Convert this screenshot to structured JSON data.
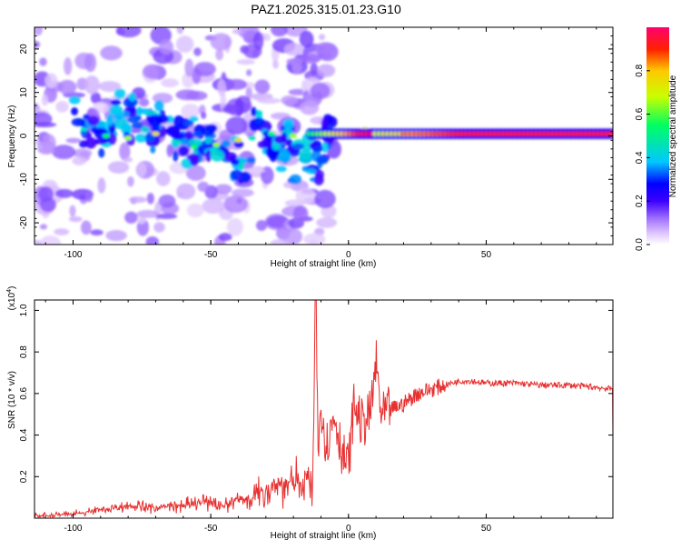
{
  "title": "PAZ1.2025.315.01.23.G10",
  "colorbar_label": "Normalized spectral amplitude",
  "colorbar_ticks": [
    "0.0",
    "0.2",
    "0.4",
    "0.6",
    "0.8"
  ],
  "chart_data": [
    {
      "type": "heatmap",
      "xlabel": "Height of straight line (km)",
      "ylabel": "Frequency (Hz)",
      "xlim": [
        -114,
        96
      ],
      "ylim": [
        -25,
        25
      ],
      "xticks": [
        -100,
        -50,
        0,
        50
      ],
      "yticks": [
        -20,
        -10,
        0,
        10,
        20
      ],
      "colorbar": {
        "min": 0,
        "max": 1,
        "ticks": [
          0.0,
          0.2,
          0.4,
          0.6,
          0.8
        ],
        "colors": [
          "#ffffff",
          "#e0c8ff",
          "#a070ff",
          "#3c00ff",
          "#0000ff",
          "#00c8ff",
          "#00ff60",
          "#c8ff00",
          "#ffc800",
          "#ff2000",
          "#ff0070"
        ]
      },
      "features": [
        {
          "description": "continuous strong band",
          "x_range": [
            10,
            96
          ],
          "frequency": 0.5,
          "amplitude": 0.9
        },
        {
          "description": "scattered diagonal blobs",
          "x_range": [
            -100,
            -5
          ],
          "frequency_range": [
            -15,
            6
          ],
          "amplitude": 0.35
        }
      ]
    },
    {
      "type": "line",
      "xlabel": "Height of straight line (km)",
      "ylabel": "SNR (10 * v/v)",
      "yscale_label": "(x10",
      "yscale_exp": "4",
      "yscale_close": ")",
      "xlim": [
        -114,
        96
      ],
      "ylim": [
        0,
        1.05
      ],
      "xticks": [
        -100,
        -50,
        0,
        50
      ],
      "yticks": [
        0.2,
        0.4,
        0.6,
        0.8,
        1.0
      ],
      "series": [
        {
          "name": "SNR",
          "color": "#e83030",
          "x": [
            -114,
            -100,
            -90,
            -80,
            -70,
            -60,
            -50,
            -45,
            -40,
            -35,
            -30,
            -25,
            -20,
            -15,
            -13,
            -12,
            -11,
            -10,
            -9,
            -8,
            -5,
            -2,
            0,
            2,
            5,
            8,
            10,
            12,
            15,
            20,
            25,
            30,
            35,
            40,
            45,
            50,
            60,
            70,
            80,
            90,
            96
          ],
          "values": [
            0.01,
            0.02,
            0.04,
            0.06,
            0.05,
            0.06,
            0.08,
            0.06,
            0.09,
            0.1,
            0.14,
            0.17,
            0.16,
            0.19,
            0.15,
            1.05,
            0.3,
            0.55,
            0.45,
            0.35,
            0.5,
            0.3,
            0.25,
            0.55,
            0.45,
            0.5,
            0.75,
            0.48,
            0.52,
            0.55,
            0.6,
            0.62,
            0.64,
            0.66,
            0.66,
            0.65,
            0.65,
            0.64,
            0.64,
            0.63,
            0.62
          ]
        }
      ]
    }
  ]
}
